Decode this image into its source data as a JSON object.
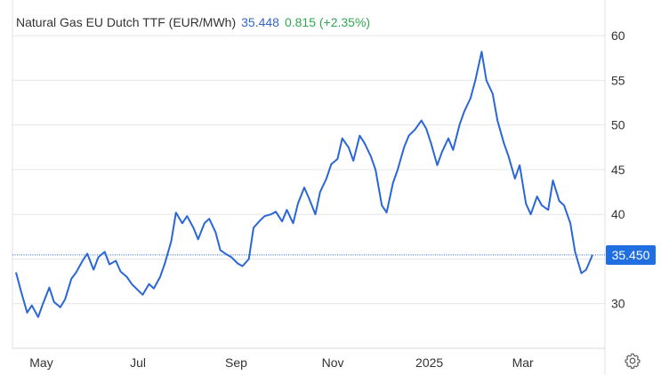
{
  "header": {
    "name": "Natural Gas EU Dutch TTF (EUR/MWh)",
    "price": "35.448",
    "change": "0.815 (+2.35%)"
  },
  "last_label": "35.450",
  "colors": {
    "line": "#2a66d8",
    "price_text": "#3366cc",
    "change_text": "#2fa84f",
    "badge": "#1f6fe0",
    "grid": "#e6e6e6"
  },
  "settings_icon": "gear-icon",
  "chart_data": {
    "type": "line",
    "title": "Natural Gas EU Dutch TTF (EUR/MWh)",
    "xlabel": "",
    "ylabel": "",
    "ylim": [
      25,
      62
    ],
    "grid": true,
    "y_ticks": [
      30,
      35,
      40,
      45,
      50,
      55,
      60
    ],
    "x_ticks": [
      "May",
      "Jul",
      "Sep",
      "Nov",
      "2025",
      "Mar"
    ],
    "x_tick_dates": [
      "2024-05-01",
      "2024-07-01",
      "2024-09-01",
      "2024-11-01",
      "2025-01-01",
      "2025-03-01"
    ],
    "last_value": 35.45,
    "series": [
      {
        "name": "Natural Gas EU Dutch TTF (EUR/MWh)",
        "x": [
          "2024-04-15",
          "2024-04-18",
          "2024-04-22",
          "2024-04-25",
          "2024-04-29",
          "2024-05-02",
          "2024-05-06",
          "2024-05-09",
          "2024-05-13",
          "2024-05-16",
          "2024-05-20",
          "2024-05-23",
          "2024-05-27",
          "2024-05-30",
          "2024-06-03",
          "2024-06-06",
          "2024-06-10",
          "2024-06-13",
          "2024-06-17",
          "2024-06-20",
          "2024-06-24",
          "2024-06-27",
          "2024-07-01",
          "2024-07-04",
          "2024-07-08",
          "2024-07-11",
          "2024-07-15",
          "2024-07-18",
          "2024-07-22",
          "2024-07-25",
          "2024-07-29",
          "2024-08-01",
          "2024-08-05",
          "2024-08-08",
          "2024-08-12",
          "2024-08-15",
          "2024-08-19",
          "2024-08-22",
          "2024-08-26",
          "2024-08-29",
          "2024-09-02",
          "2024-09-05",
          "2024-09-09",
          "2024-09-12",
          "2024-09-16",
          "2024-09-19",
          "2024-09-23",
          "2024-09-26",
          "2024-09-30",
          "2024-10-03",
          "2024-10-07",
          "2024-10-10",
          "2024-10-14",
          "2024-10-17",
          "2024-10-21",
          "2024-10-24",
          "2024-10-28",
          "2024-10-31",
          "2024-11-04",
          "2024-11-07",
          "2024-11-11",
          "2024-11-14",
          "2024-11-18",
          "2024-11-21",
          "2024-11-25",
          "2024-11-28",
          "2024-12-02",
          "2024-12-05",
          "2024-12-09",
          "2024-12-12",
          "2024-12-16",
          "2024-12-19",
          "2024-12-23",
          "2024-12-27",
          "2024-12-30",
          "2025-01-02",
          "2025-01-06",
          "2025-01-09",
          "2025-01-13",
          "2025-01-16",
          "2025-01-20",
          "2025-01-23",
          "2025-01-27",
          "2025-01-30",
          "2025-02-03",
          "2025-02-06",
          "2025-02-10",
          "2025-02-13",
          "2025-02-17",
          "2025-02-20",
          "2025-02-24",
          "2025-02-27",
          "2025-03-03",
          "2025-03-06",
          "2025-03-10",
          "2025-03-13",
          "2025-03-17",
          "2025-03-20",
          "2025-03-24",
          "2025-03-27",
          "2025-03-31",
          "2025-04-03",
          "2025-04-07",
          "2025-04-10",
          "2025-04-14"
        ],
        "values": [
          33.5,
          31.5,
          29.0,
          29.8,
          28.5,
          30.0,
          31.8,
          30.2,
          29.6,
          30.5,
          32.8,
          33.5,
          34.8,
          35.6,
          33.8,
          35.2,
          35.8,
          34.4,
          34.8,
          33.6,
          33.0,
          32.2,
          31.5,
          31.0,
          32.2,
          31.7,
          33.0,
          34.5,
          37.0,
          40.2,
          39.0,
          39.8,
          38.5,
          37.2,
          39.0,
          39.5,
          38.0,
          36.0,
          35.5,
          35.2,
          34.5,
          34.2,
          35.0,
          38.5,
          39.3,
          39.8,
          40.0,
          40.3,
          39.2,
          40.5,
          39.0,
          41.2,
          43.0,
          41.8,
          40.0,
          42.5,
          44.0,
          45.6,
          46.2,
          48.5,
          47.5,
          46.0,
          48.8,
          48.0,
          46.5,
          45.0,
          41.0,
          40.2,
          43.5,
          45.0,
          47.5,
          48.8,
          49.5,
          50.5,
          49.6,
          48.0,
          45.5,
          47.0,
          48.5,
          47.2,
          50.0,
          51.5,
          53.0,
          55.0,
          58.2,
          55.0,
          53.5,
          50.5,
          48.0,
          46.5,
          44.0,
          45.5,
          41.2,
          40.0,
          42.0,
          41.0,
          40.5,
          43.8,
          41.5,
          41.0,
          39.0,
          35.8,
          33.4,
          33.8,
          35.45
        ]
      }
    ]
  }
}
